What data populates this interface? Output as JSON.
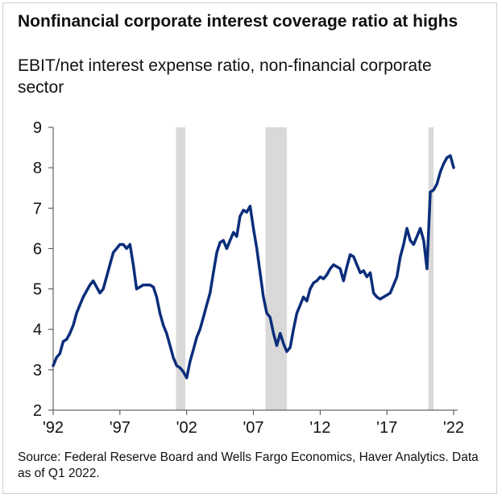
{
  "title": "Nonfinancial corporate interest coverage ratio at highs",
  "subtitle": "EBIT/net interest expense ratio, non-financial corporate sector",
  "source": "Source: Federal Reserve Board and Wells Fargo Economics, Haver Analytics. Data as of Q1 2022.",
  "colors": {
    "line": "#0b2e7a",
    "recession": "#d9d9d9",
    "axis": "#444444"
  },
  "chart_data": {
    "type": "line",
    "title": "Nonfinancial corporate interest coverage ratio at highs",
    "subtitle": "EBIT/net interest expense ratio, non-financial corporate sector",
    "xlabel": "",
    "ylabel": "",
    "xlim": [
      1992.0,
      2022.3
    ],
    "ylim": [
      2,
      9
    ],
    "yticks": [
      2,
      3,
      4,
      5,
      6,
      7,
      8,
      9
    ],
    "xticks": [
      {
        "value": 1992,
        "label": "'92"
      },
      {
        "value": 1997,
        "label": "'97"
      },
      {
        "value": 2002,
        "label": "'02"
      },
      {
        "value": 2007,
        "label": "'07"
      },
      {
        "value": 2012,
        "label": "'12"
      },
      {
        "value": 2017,
        "label": "'17"
      },
      {
        "value": 2022,
        "label": "'22"
      }
    ],
    "recessions": [
      {
        "start": 2001.2,
        "end": 2001.9
      },
      {
        "start": 2007.9,
        "end": 2009.5
      },
      {
        "start": 2020.1,
        "end": 2020.5
      }
    ],
    "series": [
      {
        "name": "EBIT/net interest expense ratio",
        "x": [
          1992.0,
          1992.25,
          1992.5,
          1992.75,
          1993.0,
          1993.25,
          1993.5,
          1993.75,
          1994.0,
          1994.25,
          1994.5,
          1994.75,
          1995.0,
          1995.25,
          1995.5,
          1995.75,
          1996.0,
          1996.25,
          1996.5,
          1996.75,
          1997.0,
          1997.25,
          1997.5,
          1997.75,
          1998.0,
          1998.25,
          1998.5,
          1998.75,
          1999.0,
          1999.25,
          1999.5,
          1999.75,
          2000.0,
          2000.25,
          2000.5,
          2000.75,
          2001.0,
          2001.25,
          2001.5,
          2001.75,
          2002.0,
          2002.25,
          2002.5,
          2002.75,
          2003.0,
          2003.25,
          2003.5,
          2003.75,
          2004.0,
          2004.25,
          2004.5,
          2004.75,
          2005.0,
          2005.25,
          2005.5,
          2005.75,
          2006.0,
          2006.25,
          2006.5,
          2006.75,
          2007.0,
          2007.25,
          2007.5,
          2007.75,
          2008.0,
          2008.25,
          2008.5,
          2008.75,
          2009.0,
          2009.25,
          2009.5,
          2009.75,
          2010.0,
          2010.25,
          2010.5,
          2010.75,
          2011.0,
          2011.25,
          2011.5,
          2011.75,
          2012.0,
          2012.25,
          2012.5,
          2012.75,
          2013.0,
          2013.25,
          2013.5,
          2013.75,
          2014.0,
          2014.25,
          2014.5,
          2014.75,
          2015.0,
          2015.25,
          2015.5,
          2015.75,
          2016.0,
          2016.25,
          2016.5,
          2016.75,
          2017.0,
          2017.25,
          2017.5,
          2017.75,
          2018.0,
          2018.25,
          2018.5,
          2018.75,
          2019.0,
          2019.25,
          2019.5,
          2019.75,
          2020.0,
          2020.25,
          2020.5,
          2020.75,
          2021.0,
          2021.25,
          2021.5,
          2021.75,
          2022.0
        ],
        "values": [
          3.1,
          3.3,
          3.4,
          3.7,
          3.75,
          3.9,
          4.1,
          4.4,
          4.6,
          4.8,
          4.95,
          5.1,
          5.2,
          5.05,
          4.9,
          5.0,
          5.3,
          5.6,
          5.9,
          6.0,
          6.1,
          6.1,
          6.0,
          6.1,
          5.6,
          5.0,
          5.05,
          5.1,
          5.1,
          5.1,
          5.05,
          4.8,
          4.4,
          4.1,
          3.9,
          3.6,
          3.3,
          3.1,
          3.05,
          2.95,
          2.8,
          3.2,
          3.5,
          3.8,
          4.0,
          4.3,
          4.6,
          4.9,
          5.4,
          5.9,
          6.15,
          6.2,
          6.0,
          6.2,
          6.4,
          6.3,
          6.8,
          6.95,
          6.9,
          7.05,
          6.5,
          6.0,
          5.4,
          4.8,
          4.4,
          4.3,
          3.9,
          3.6,
          3.9,
          3.65,
          3.45,
          3.55,
          4.0,
          4.4,
          4.6,
          4.8,
          4.7,
          5.0,
          5.15,
          5.2,
          5.3,
          5.25,
          5.35,
          5.5,
          5.6,
          5.55,
          5.5,
          5.2,
          5.55,
          5.85,
          5.8,
          5.6,
          5.4,
          5.45,
          5.3,
          5.4,
          4.9,
          4.8,
          4.75,
          4.8,
          4.85,
          4.9,
          5.1,
          5.3,
          5.8,
          6.1,
          6.5,
          6.2,
          6.1,
          6.3,
          6.5,
          6.2,
          5.5,
          7.4,
          7.45,
          7.6,
          7.9,
          8.1,
          8.25,
          8.3,
          8.0
        ]
      }
    ]
  }
}
